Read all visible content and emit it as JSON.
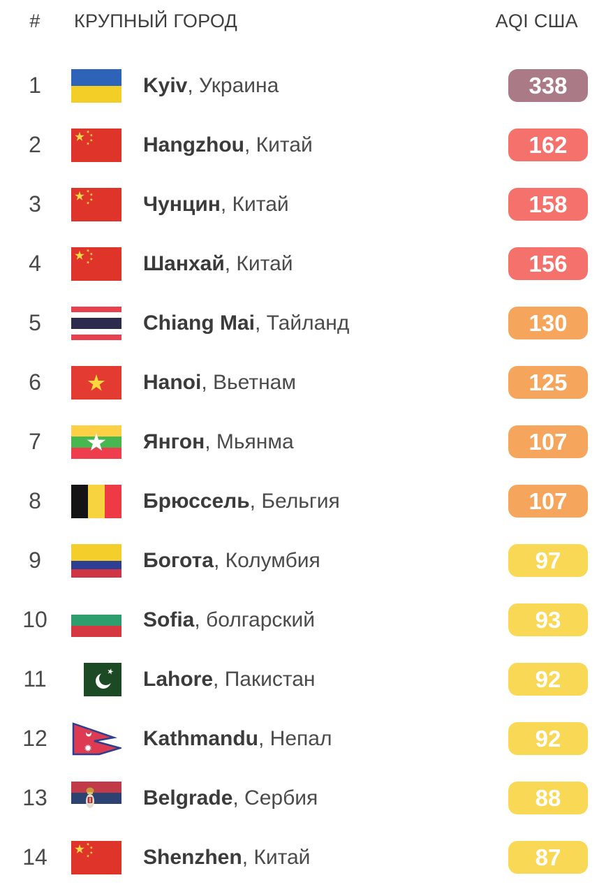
{
  "header": {
    "rank": "#",
    "city": "КРУПНЫЙ ГОРОД",
    "aqi": "AQI США"
  },
  "separator": ", ",
  "aqi_colors": {
    "hazardous": "#ab7a87",
    "unhealthy": "#f5716b",
    "unhealthy_sensitive": "#f6a65c",
    "moderate": "#f8d854"
  },
  "badge_text_color": "#ffffff",
  "rows": [
    {
      "rank": "1",
      "city": "Kyiv",
      "country": "Украина",
      "flag": "ukraine",
      "aqi": "338",
      "level": "hazardous"
    },
    {
      "rank": "2",
      "city": "Hangzhou",
      "country": "Китай",
      "flag": "china",
      "aqi": "162",
      "level": "unhealthy"
    },
    {
      "rank": "3",
      "city": "Чунцин",
      "country": "Китай",
      "flag": "china",
      "aqi": "158",
      "level": "unhealthy"
    },
    {
      "rank": "4",
      "city": "Шанхай",
      "country": "Китай",
      "flag": "china",
      "aqi": "156",
      "level": "unhealthy"
    },
    {
      "rank": "5",
      "city": "Chiang Mai",
      "country": "Тайланд",
      "flag": "thailand",
      "aqi": "130",
      "level": "unhealthy_sensitive"
    },
    {
      "rank": "6",
      "city": "Hanoi",
      "country": "Вьетнам",
      "flag": "vietnam",
      "aqi": "125",
      "level": "unhealthy_sensitive"
    },
    {
      "rank": "7",
      "city": "Янгон",
      "country": "Мьянма",
      "flag": "myanmar",
      "aqi": "107",
      "level": "unhealthy_sensitive"
    },
    {
      "rank": "8",
      "city": "Брюссель",
      "country": "Бельгия",
      "flag": "belgium",
      "aqi": "107",
      "level": "unhealthy_sensitive"
    },
    {
      "rank": "9",
      "city": "Богота",
      "country": "Колумбия",
      "flag": "colombia",
      "aqi": "97",
      "level": "moderate"
    },
    {
      "rank": "10",
      "city": "Sofia",
      "country": "болгарский",
      "flag": "bulgaria",
      "aqi": "93",
      "level": "moderate"
    },
    {
      "rank": "11",
      "city": "Lahore",
      "country": "Пакистан",
      "flag": "pakistan",
      "aqi": "92",
      "level": "moderate"
    },
    {
      "rank": "12",
      "city": "Kathmandu",
      "country": "Непал",
      "flag": "nepal",
      "aqi": "92",
      "level": "moderate"
    },
    {
      "rank": "13",
      "city": "Belgrade",
      "country": "Сербия",
      "flag": "serbia",
      "aqi": "88",
      "level": "moderate"
    },
    {
      "rank": "14",
      "city": "Shenzhen",
      "country": "Китай",
      "flag": "china",
      "aqi": "87",
      "level": "moderate"
    }
  ]
}
